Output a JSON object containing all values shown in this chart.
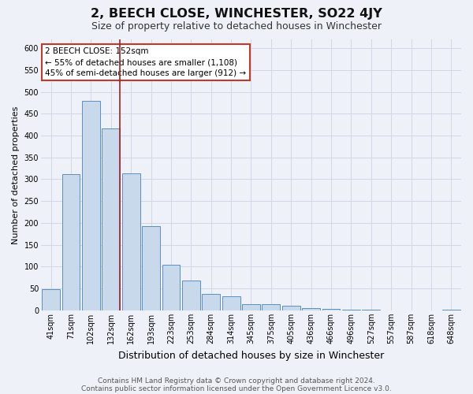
{
  "title": "2, BEECH CLOSE, WINCHESTER, SO22 4JY",
  "subtitle": "Size of property relative to detached houses in Winchester",
  "xlabel": "Distribution of detached houses by size in Winchester",
  "ylabel": "Number of detached properties",
  "bar_labels": [
    "41sqm",
    "71sqm",
    "102sqm",
    "132sqm",
    "162sqm",
    "193sqm",
    "223sqm",
    "253sqm",
    "284sqm",
    "314sqm",
    "345sqm",
    "375sqm",
    "405sqm",
    "436sqm",
    "466sqm",
    "496sqm",
    "527sqm",
    "557sqm",
    "587sqm",
    "618sqm",
    "648sqm"
  ],
  "bar_values": [
    48,
    311,
    479,
    416,
    314,
    193,
    105,
    69,
    38,
    32,
    15,
    15,
    10,
    5,
    3,
    2,
    1,
    0,
    0,
    0,
    2
  ],
  "bar_color": "#c9d9ec",
  "bar_edge_color": "#5b8fc0",
  "grid_color": "#d0d8e8",
  "background_color": "#eef2f8",
  "vline_color": "#a52020",
  "annotation_title": "2 BEECH CLOSE: 152sqm",
  "annotation_line1": "← 55% of detached houses are smaller (1,108)",
  "annotation_line2": "45% of semi-detached houses are larger (912) →",
  "annotation_box_color": "#ffffff",
  "annotation_box_edge": "#c0392b",
  "ylim": [
    0,
    620
  ],
  "yticks": [
    0,
    50,
    100,
    150,
    200,
    250,
    300,
    350,
    400,
    450,
    500,
    550,
    600
  ],
  "footnote1": "Contains HM Land Registry data © Crown copyright and database right 2024.",
  "footnote2": "Contains public sector information licensed under the Open Government Licence v3.0.",
  "title_fontsize": 11.5,
  "subtitle_fontsize": 9,
  "xlabel_fontsize": 9,
  "ylabel_fontsize": 8,
  "tick_fontsize": 7,
  "annotation_fontsize": 7.5,
  "footnote_fontsize": 6.5
}
